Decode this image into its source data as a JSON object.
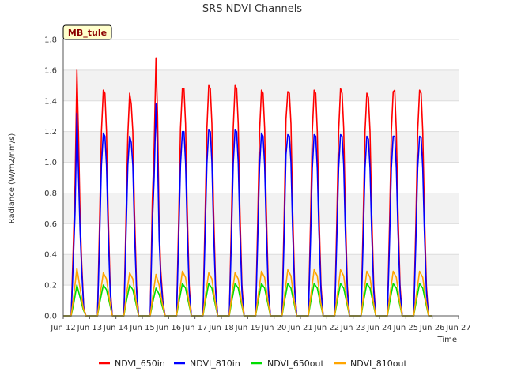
{
  "chart_data": {
    "type": "line",
    "title": "SRS NDVI Channels",
    "xlabel": "Time",
    "ylabel": "Radiance (W/m2/nm/s)",
    "ylim": [
      0.0,
      1.8
    ],
    "xlim": [
      0,
      15
    ],
    "grid": "horizontal bands",
    "legend_placement": "bottom",
    "badge": "MB_tule",
    "x_ticks": [
      "Jun 12",
      "Jun 13",
      "Jun 14",
      "Jun 15",
      "Jun 16",
      "Jun 17",
      "Jun 18",
      "Jun 19",
      "Jun 20",
      "Jun 21",
      "Jun 22",
      "Jun 23",
      "Jun 24",
      "Jun 25",
      "Jun 26",
      "Jun 27"
    ],
    "y_ticks": [
      "0.0",
      "0.2",
      "0.4",
      "0.6",
      "0.8",
      "1.0",
      "1.2",
      "1.4",
      "1.6",
      "1.8"
    ],
    "x_unit": "days since Jun 12",
    "series": [
      {
        "name": "NDVI_650in",
        "color": "#ff0000",
        "x": [
          0.0,
          0.3,
          0.38,
          0.45,
          0.52,
          0.58,
          0.64,
          0.7,
          0.78,
          0.86,
          1.3,
          1.38,
          1.45,
          1.52,
          1.58,
          1.64,
          1.7,
          1.78,
          1.86,
          2.3,
          2.38,
          2.45,
          2.52,
          2.58,
          2.64,
          2.7,
          2.78,
          2.86,
          3.3,
          3.38,
          3.45,
          3.52,
          3.58,
          3.64,
          3.7,
          3.78,
          3.86,
          4.3,
          4.38,
          4.45,
          4.52,
          4.58,
          4.64,
          4.7,
          4.78,
          4.86,
          5.3,
          5.38,
          5.45,
          5.52,
          5.58,
          5.64,
          5.7,
          5.78,
          5.86,
          6.3,
          6.38,
          6.45,
          6.52,
          6.58,
          6.64,
          6.7,
          6.78,
          6.86,
          7.3,
          7.38,
          7.45,
          7.52,
          7.58,
          7.64,
          7.7,
          7.78,
          7.86,
          8.3,
          8.38,
          8.45,
          8.52,
          8.58,
          8.64,
          8.7,
          8.78,
          8.86,
          9.3,
          9.38,
          9.45,
          9.52,
          9.58,
          9.64,
          9.7,
          9.78,
          9.86,
          10.3,
          10.38,
          10.45,
          10.52,
          10.58,
          10.64,
          10.7,
          10.78,
          10.86,
          11.3,
          11.38,
          11.45,
          11.52,
          11.58,
          11.64,
          11.7,
          11.78,
          11.86,
          12.3,
          12.38,
          12.45,
          12.52,
          12.58,
          12.64,
          12.7,
          12.78,
          12.86,
          13.3,
          13.38,
          13.45,
          13.52,
          13.58,
          13.64,
          13.7,
          13.78,
          13.86,
          14.0
        ],
        "values": [
          0,
          0,
          0.45,
          0.86,
          1.6,
          1.18,
          0.66,
          0.35,
          0.05,
          0,
          0,
          0.62,
          1.2,
          1.47,
          1.45,
          1.2,
          0.7,
          0.2,
          0,
          0,
          0.62,
          1.18,
          1.45,
          1.38,
          1.2,
          0.7,
          0.2,
          0,
          0,
          0.75,
          1.1,
          1.68,
          1.3,
          0.6,
          0.3,
          0.1,
          0,
          0,
          0.62,
          1.22,
          1.48,
          1.48,
          1.25,
          0.72,
          0.2,
          0,
          0,
          0.62,
          1.22,
          1.5,
          1.48,
          1.25,
          0.72,
          0.2,
          0,
          0,
          0.62,
          1.22,
          1.5,
          1.48,
          1.25,
          0.72,
          0.2,
          0,
          0,
          0.62,
          1.2,
          1.47,
          1.45,
          1.22,
          0.72,
          0.2,
          0,
          0,
          0.62,
          1.28,
          1.46,
          1.45,
          1.25,
          0.72,
          0.2,
          0,
          0,
          0.6,
          1.2,
          1.47,
          1.45,
          1.2,
          0.7,
          0.2,
          0,
          0,
          0.62,
          1.2,
          1.48,
          1.45,
          1.22,
          0.7,
          0.2,
          0,
          0,
          0.6,
          1.2,
          1.45,
          1.42,
          1.2,
          0.7,
          0.2,
          0,
          0,
          0.6,
          1.2,
          1.46,
          1.47,
          1.2,
          0.7,
          0.2,
          0,
          0,
          0.6,
          1.2,
          1.47,
          1.45,
          1.2,
          0.7,
          0.2,
          0,
          0
        ]
      },
      {
        "name": "NDVI_810in",
        "color": "#0000ff",
        "x": [
          0.0,
          0.3,
          0.38,
          0.45,
          0.52,
          0.58,
          0.64,
          0.7,
          0.78,
          0.86,
          1.3,
          1.38,
          1.45,
          1.52,
          1.58,
          1.64,
          1.7,
          1.78,
          1.86,
          2.3,
          2.38,
          2.45,
          2.52,
          2.58,
          2.64,
          2.7,
          2.78,
          2.86,
          3.3,
          3.38,
          3.45,
          3.52,
          3.58,
          3.64,
          3.7,
          3.78,
          3.86,
          4.3,
          4.38,
          4.45,
          4.52,
          4.58,
          4.64,
          4.7,
          4.78,
          4.86,
          5.3,
          5.38,
          5.45,
          5.52,
          5.58,
          5.64,
          5.7,
          5.78,
          5.86,
          6.3,
          6.38,
          6.45,
          6.52,
          6.58,
          6.64,
          6.7,
          6.78,
          6.86,
          7.3,
          7.38,
          7.45,
          7.52,
          7.58,
          7.64,
          7.7,
          7.78,
          7.86,
          8.3,
          8.38,
          8.45,
          8.52,
          8.58,
          8.64,
          8.7,
          8.78,
          8.86,
          9.3,
          9.38,
          9.45,
          9.52,
          9.58,
          9.64,
          9.7,
          9.78,
          9.86,
          10.3,
          10.38,
          10.45,
          10.52,
          10.58,
          10.64,
          10.7,
          10.78,
          10.86,
          11.3,
          11.38,
          11.45,
          11.52,
          11.58,
          11.64,
          11.7,
          11.78,
          11.86,
          12.3,
          12.38,
          12.45,
          12.52,
          12.58,
          12.64,
          12.7,
          12.78,
          12.86,
          13.3,
          13.38,
          13.45,
          13.52,
          13.58,
          13.64,
          13.7,
          13.78,
          13.86,
          14.0
        ],
        "values": [
          0,
          0,
          0.35,
          0.68,
          1.32,
          0.92,
          0.55,
          0.3,
          0.04,
          0,
          0,
          0.5,
          0.98,
          1.19,
          1.17,
          0.98,
          0.57,
          0.16,
          0,
          0,
          0.5,
          0.98,
          1.17,
          1.13,
          0.98,
          0.57,
          0.16,
          0,
          0,
          0.6,
          0.9,
          1.38,
          1.05,
          0.5,
          0.25,
          0.08,
          0,
          0,
          0.5,
          0.98,
          1.2,
          1.2,
          1.0,
          0.58,
          0.16,
          0,
          0,
          0.5,
          0.99,
          1.21,
          1.2,
          1.0,
          0.58,
          0.16,
          0,
          0,
          0.5,
          0.99,
          1.21,
          1.2,
          1.0,
          0.58,
          0.16,
          0,
          0,
          0.5,
          0.97,
          1.19,
          1.17,
          0.98,
          0.58,
          0.16,
          0,
          0,
          0.5,
          1.05,
          1.18,
          1.17,
          1.0,
          0.58,
          0.16,
          0,
          0,
          0.48,
          0.96,
          1.18,
          1.17,
          0.96,
          0.56,
          0.16,
          0,
          0,
          0.5,
          0.96,
          1.18,
          1.17,
          0.98,
          0.56,
          0.16,
          0,
          0,
          0.48,
          0.96,
          1.17,
          1.15,
          0.96,
          0.56,
          0.16,
          0,
          0,
          0.48,
          0.96,
          1.17,
          1.17,
          0.96,
          0.56,
          0.16,
          0,
          0,
          0.48,
          0.96,
          1.17,
          1.16,
          0.96,
          0.56,
          0.16,
          0,
          0
        ]
      },
      {
        "name": "NDVI_650out",
        "color": "#00dd00",
        "x": [
          0.0,
          0.3,
          0.4,
          0.52,
          0.64,
          0.76,
          0.86,
          1.3,
          1.4,
          1.52,
          1.64,
          1.76,
          1.86,
          2.3,
          2.4,
          2.52,
          2.64,
          2.76,
          2.86,
          3.3,
          3.4,
          3.52,
          3.64,
          3.76,
          3.86,
          4.3,
          4.4,
          4.52,
          4.64,
          4.76,
          4.86,
          5.3,
          5.4,
          5.52,
          5.64,
          5.76,
          5.86,
          6.3,
          6.4,
          6.52,
          6.64,
          6.76,
          6.86,
          7.3,
          7.4,
          7.52,
          7.64,
          7.76,
          7.86,
          8.3,
          8.4,
          8.52,
          8.64,
          8.76,
          8.86,
          9.3,
          9.4,
          9.52,
          9.64,
          9.76,
          9.86,
          10.3,
          10.4,
          10.52,
          10.64,
          10.76,
          10.86,
          11.3,
          11.4,
          11.52,
          11.64,
          11.76,
          11.86,
          12.3,
          12.4,
          12.52,
          12.64,
          12.76,
          12.86,
          13.3,
          13.4,
          13.52,
          13.64,
          13.76,
          13.86,
          14.0
        ],
        "values": [
          0,
          0,
          0.08,
          0.2,
          0.12,
          0.04,
          0,
          0,
          0.1,
          0.2,
          0.17,
          0.08,
          0,
          0,
          0.1,
          0.2,
          0.17,
          0.08,
          0,
          0,
          0.09,
          0.18,
          0.14,
          0.06,
          0,
          0,
          0.1,
          0.21,
          0.18,
          0.08,
          0,
          0,
          0.1,
          0.21,
          0.18,
          0.08,
          0,
          0,
          0.1,
          0.21,
          0.18,
          0.08,
          0,
          0,
          0.1,
          0.21,
          0.18,
          0.08,
          0,
          0,
          0.1,
          0.21,
          0.18,
          0.08,
          0,
          0,
          0.1,
          0.21,
          0.18,
          0.08,
          0,
          0,
          0.1,
          0.21,
          0.18,
          0.08,
          0,
          0,
          0.1,
          0.21,
          0.18,
          0.08,
          0,
          0,
          0.1,
          0.21,
          0.18,
          0.08,
          0,
          0,
          0.1,
          0.21,
          0.18,
          0.08,
          0,
          0
        ]
      },
      {
        "name": "NDVI_810out",
        "color": "#ffa500",
        "x": [
          0.0,
          0.3,
          0.4,
          0.52,
          0.64,
          0.76,
          0.86,
          1.3,
          1.4,
          1.52,
          1.64,
          1.76,
          1.86,
          2.3,
          2.4,
          2.52,
          2.64,
          2.76,
          2.86,
          3.3,
          3.4,
          3.52,
          3.64,
          3.76,
          3.86,
          4.3,
          4.4,
          4.52,
          4.64,
          4.76,
          4.86,
          5.3,
          5.4,
          5.52,
          5.64,
          5.76,
          5.86,
          6.3,
          6.4,
          6.52,
          6.64,
          6.76,
          6.86,
          7.3,
          7.4,
          7.52,
          7.64,
          7.76,
          7.86,
          8.3,
          8.4,
          8.52,
          8.64,
          8.76,
          8.86,
          9.3,
          9.4,
          9.52,
          9.64,
          9.76,
          9.86,
          10.3,
          10.4,
          10.52,
          10.64,
          10.76,
          10.86,
          11.3,
          11.4,
          11.52,
          11.64,
          11.76,
          11.86,
          12.3,
          12.4,
          12.52,
          12.64,
          12.76,
          12.86,
          13.3,
          13.4,
          13.52,
          13.64,
          13.76,
          13.86,
          14.0
        ],
        "values": [
          0,
          0,
          0.13,
          0.31,
          0.18,
          0.05,
          0,
          0,
          0.14,
          0.28,
          0.24,
          0.1,
          0,
          0,
          0.14,
          0.28,
          0.24,
          0.1,
          0,
          0,
          0.13,
          0.27,
          0.2,
          0.08,
          0,
          0,
          0.14,
          0.29,
          0.25,
          0.1,
          0,
          0,
          0.14,
          0.28,
          0.24,
          0.1,
          0,
          0,
          0.14,
          0.28,
          0.24,
          0.1,
          0,
          0,
          0.14,
          0.29,
          0.25,
          0.1,
          0,
          0,
          0.14,
          0.3,
          0.26,
          0.1,
          0,
          0,
          0.14,
          0.3,
          0.26,
          0.1,
          0,
          0,
          0.14,
          0.3,
          0.26,
          0.1,
          0,
          0,
          0.14,
          0.29,
          0.25,
          0.1,
          0,
          0,
          0.14,
          0.29,
          0.25,
          0.1,
          0,
          0,
          0.14,
          0.29,
          0.25,
          0.1,
          0,
          0
        ]
      }
    ]
  }
}
